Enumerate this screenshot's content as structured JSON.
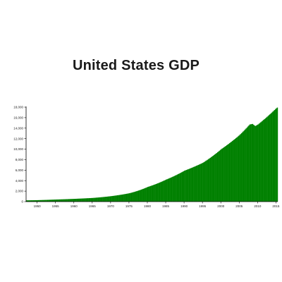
{
  "chart_title": "United States GDP",
  "chart_data": {
    "type": "bar",
    "title": "United States GDP",
    "xlabel": "",
    "ylabel": "",
    "xlim": [
      1947,
      2015.5
    ],
    "ylim": [
      0,
      18000
    ],
    "x_ticks": [
      "1950",
      "1955",
      "1960",
      "1965",
      "1970",
      "1975",
      "1980",
      "1985",
      "1990",
      "1995",
      "2000",
      "2005",
      "2010",
      "2015"
    ],
    "y_ticks": [
      "0",
      "2,000",
      "4,000",
      "6,000",
      "8,000",
      "10,000",
      "12,000",
      "14,000",
      "16,000",
      "18,000"
    ],
    "bar_color": "#008000",
    "grid": false,
    "legend": "none",
    "sampling": "quarterly",
    "anchors": [
      [
        1947.0,
        243
      ],
      [
        1950.0,
        280
      ],
      [
        1955.0,
        400
      ],
      [
        1960.0,
        530
      ],
      [
        1965.0,
        700
      ],
      [
        1970.0,
        1040
      ],
      [
        1975.0,
        1600
      ],
      [
        1980.0,
        2800
      ],
      [
        1985.0,
        4200
      ],
      [
        1990.0,
        5900
      ],
      [
        1995.0,
        7400
      ],
      [
        2000.0,
        10000
      ],
      [
        2005.0,
        12700
      ],
      [
        2007.75,
        14700
      ],
      [
        2008.5,
        14800
      ],
      [
        2009.25,
        14400
      ],
      [
        2010.0,
        14700
      ],
      [
        2015.0,
        17800
      ],
      [
        2015.5,
        18050
      ]
    ]
  }
}
